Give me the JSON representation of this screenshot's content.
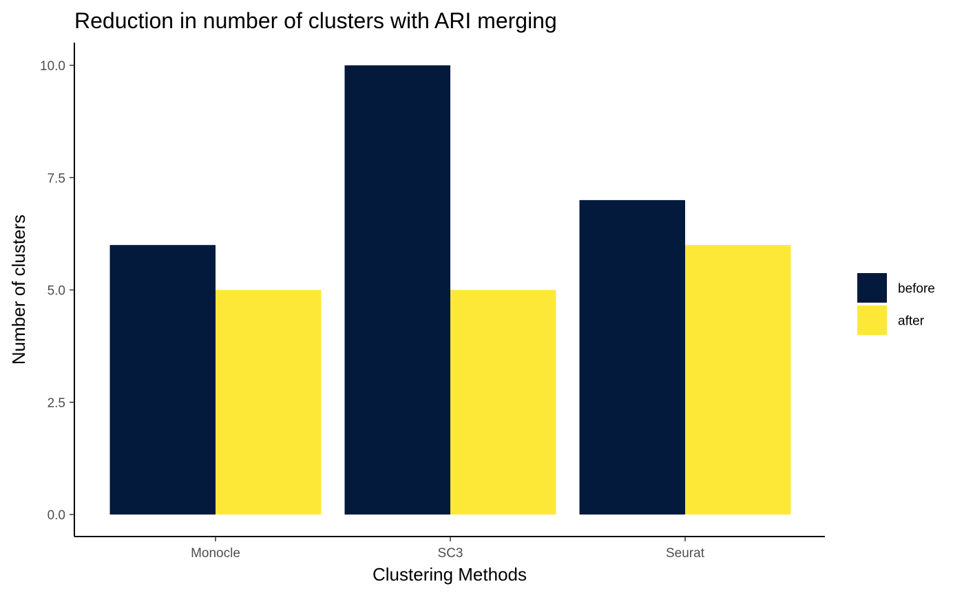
{
  "chart_data": {
    "type": "bar",
    "title": "Reduction in number of clusters with ARI merging",
    "xlabel": "Clustering Methods",
    "ylabel": "Number of clusters",
    "categories": [
      "Monocle",
      "SC3",
      "Seurat"
    ],
    "series": [
      {
        "name": "before",
        "color": "#031a3c",
        "values": [
          6,
          10,
          7
        ]
      },
      {
        "name": "after",
        "color": "#fde838",
        "values": [
          5,
          5,
          6
        ]
      }
    ],
    "ylim": [
      0,
      10.5
    ],
    "yticks": [
      0.0,
      2.5,
      5.0,
      7.5,
      10.0
    ],
    "ytick_labels": [
      "0.0",
      "2.5",
      "5.0",
      "7.5",
      "10.0"
    ],
    "grid": false,
    "legend_position": "right"
  }
}
